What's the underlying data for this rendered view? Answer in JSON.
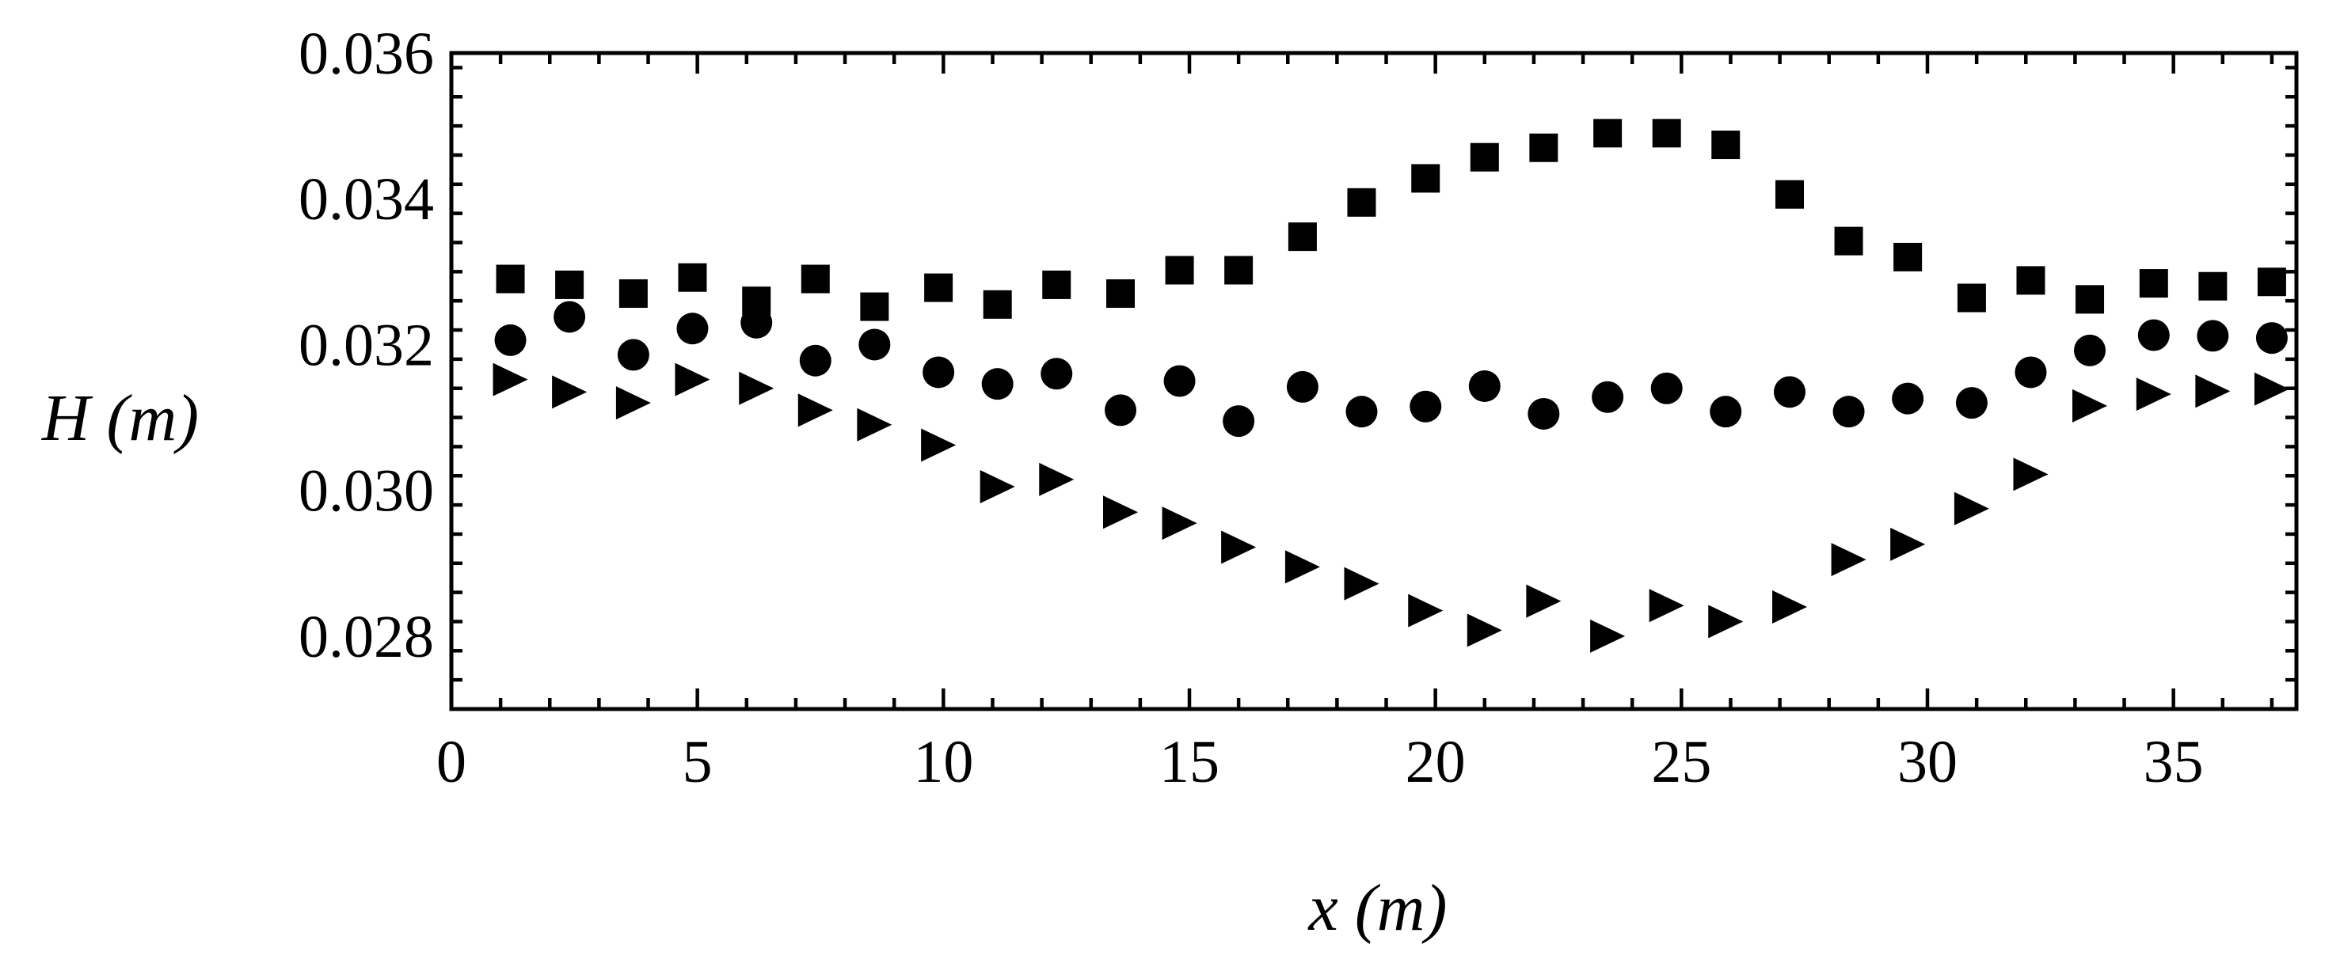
{
  "chart_data": {
    "type": "scatter",
    "xlabel": "x (m)",
    "ylabel": "H (m)",
    "xlim": [
      0,
      37.5
    ],
    "ylim": [
      0.027,
      0.036
    ],
    "x_ticks": [
      0,
      5,
      10,
      15,
      20,
      25,
      30,
      35
    ],
    "y_ticks": [
      0.028,
      0.03,
      0.032,
      0.034,
      0.036
    ],
    "y_tick_labels": [
      "0.028",
      "0.030",
      "0.032",
      "0.034",
      "0.036"
    ],
    "grid": false,
    "legend": "none",
    "colors": {
      "marker": "#000000",
      "axis": "#000000"
    },
    "series": [
      {
        "marker": "square",
        "x": [
          1.2,
          2.4,
          3.7,
          4.9,
          6.2,
          7.4,
          8.6,
          9.9,
          11.1,
          12.3,
          13.6,
          14.8,
          16.0,
          17.3,
          18.5,
          19.8,
          21.0,
          22.2,
          23.5,
          24.7,
          25.9,
          27.2,
          28.4,
          29.6,
          30.9,
          32.1,
          33.3,
          34.6,
          35.8,
          37.0
        ],
        "y": [
          0.0329,
          0.03282,
          0.0327,
          0.03292,
          0.0326,
          0.0329,
          0.03252,
          0.03278,
          0.03255,
          0.03282,
          0.0327,
          0.03302,
          0.03302,
          0.03348,
          0.03395,
          0.03428,
          0.03457,
          0.0347,
          0.0349,
          0.0349,
          0.03474,
          0.03406,
          0.03342,
          0.0332,
          0.03264,
          0.03288,
          0.03262,
          0.03284,
          0.0328,
          0.03286
        ]
      },
      {
        "marker": "circle",
        "x": [
          1.2,
          2.4,
          3.7,
          4.9,
          6.2,
          7.4,
          8.6,
          9.9,
          11.1,
          12.3,
          13.6,
          14.8,
          16.0,
          17.3,
          18.5,
          19.8,
          21.0,
          22.2,
          23.5,
          24.7,
          25.9,
          27.2,
          28.4,
          29.6,
          30.9,
          32.1,
          33.3,
          34.6,
          35.8,
          37.0
        ],
        "y": [
          0.03206,
          0.03238,
          0.03186,
          0.03222,
          0.0323,
          0.03178,
          0.032,
          0.03162,
          0.03146,
          0.0316,
          0.0311,
          0.0315,
          0.03095,
          0.03142,
          0.03108,
          0.03115,
          0.03143,
          0.03105,
          0.03128,
          0.0314,
          0.03108,
          0.03135,
          0.03108,
          0.03126,
          0.0312,
          0.03162,
          0.03192,
          0.03213,
          0.03212,
          0.03209
        ]
      },
      {
        "marker": "triangle-right",
        "x": [
          1.2,
          2.4,
          3.7,
          4.9,
          6.2,
          7.4,
          8.6,
          9.9,
          11.1,
          12.3,
          13.6,
          14.8,
          16.0,
          17.3,
          18.5,
          19.8,
          21.0,
          22.2,
          23.5,
          24.7,
          25.9,
          27.2,
          28.4,
          29.6,
          30.9,
          32.1,
          33.3,
          34.6,
          35.8,
          37.0
        ],
        "y": [
          0.03152,
          0.03135,
          0.0312,
          0.03152,
          0.0314,
          0.0311,
          0.0309,
          0.03062,
          0.03005,
          0.03015,
          0.0297,
          0.02955,
          0.02922,
          0.02895,
          0.02872,
          0.02835,
          0.02808,
          0.02848,
          0.028,
          0.02842,
          0.0282,
          0.0284,
          0.02905,
          0.02926,
          0.02975,
          0.03022,
          0.03116,
          0.03132,
          0.03136,
          0.03139
        ]
      }
    ]
  }
}
